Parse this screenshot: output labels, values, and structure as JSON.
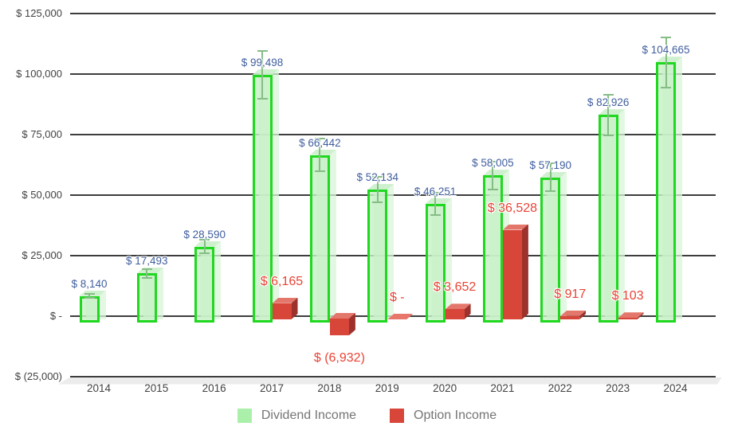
{
  "chart_data": {
    "type": "bar",
    "title": "",
    "categories": [
      "2014",
      "2015",
      "2016",
      "2017",
      "2018",
      "2019",
      "2020",
      "2021",
      "2022",
      "2023",
      "2024"
    ],
    "series": [
      {
        "name": "Dividend Income",
        "values": [
          8140,
          17493,
          28590,
          99498,
          66442,
          52134,
          46251,
          58005,
          57190,
          82926,
          104665
        ],
        "data_labels": [
          "$ 8,140",
          "$ 17,493",
          "$ 28,590",
          "$ 99,498",
          "$ 66,442",
          "$ 52,134",
          "$ 46,251",
          "$ 58,005",
          "$ 57,190",
          "$ 82,926",
          "$ 104,665"
        ],
        "error_bars": "plus-minus 10 percent",
        "style": {
          "border": "#1fd81f",
          "fill": "rgba(198,240,198,0.82)",
          "extrude": "rgba(216,246,216,0.75)",
          "topface": "rgba(205,238,205,0.9)",
          "error": "#86bc86",
          "label_color": "#3f5e9e"
        }
      },
      {
        "name": "Option Income",
        "values": [
          null,
          null,
          null,
          6165,
          -6932,
          0,
          3652,
          36528,
          917,
          103,
          null
        ],
        "data_labels": [
          null,
          null,
          null,
          "$ 6,165",
          "$ (6,932)",
          "$ -",
          "$ 3,652",
          "$ 36,528",
          "$ 917",
          "$ 103",
          null
        ],
        "style": {
          "face": "#d8463a",
          "top": "#e4776c",
          "side": "#9c322b",
          "zero_marker": "#e8766b",
          "label_color": "#ea4335"
        }
      }
    ],
    "y_axis": {
      "min": -25000,
      "max": 125000,
      "tick_step": 25000,
      "grid": true,
      "ticks": [
        125000,
        100000,
        75000,
        50000,
        25000,
        0,
        -25000
      ],
      "tick_labels": [
        "$ 125,000",
        "$ 100,000",
        "$ 75,000",
        "$ 50,000",
        "$ 25,000",
        "$ -",
        "$ (25,000)"
      ]
    },
    "x_axis": {
      "labels": [
        "2014",
        "2015",
        "2016",
        "2017",
        "2018",
        "2019",
        "2020",
        "2021",
        "2022",
        "2023",
        "2024"
      ]
    },
    "legend": {
      "position": "bottom",
      "items": [
        {
          "label": "Dividend Income",
          "color": "#aaf0aa"
        },
        {
          "label": "Option Income",
          "color": "#d8463a"
        }
      ]
    }
  }
}
